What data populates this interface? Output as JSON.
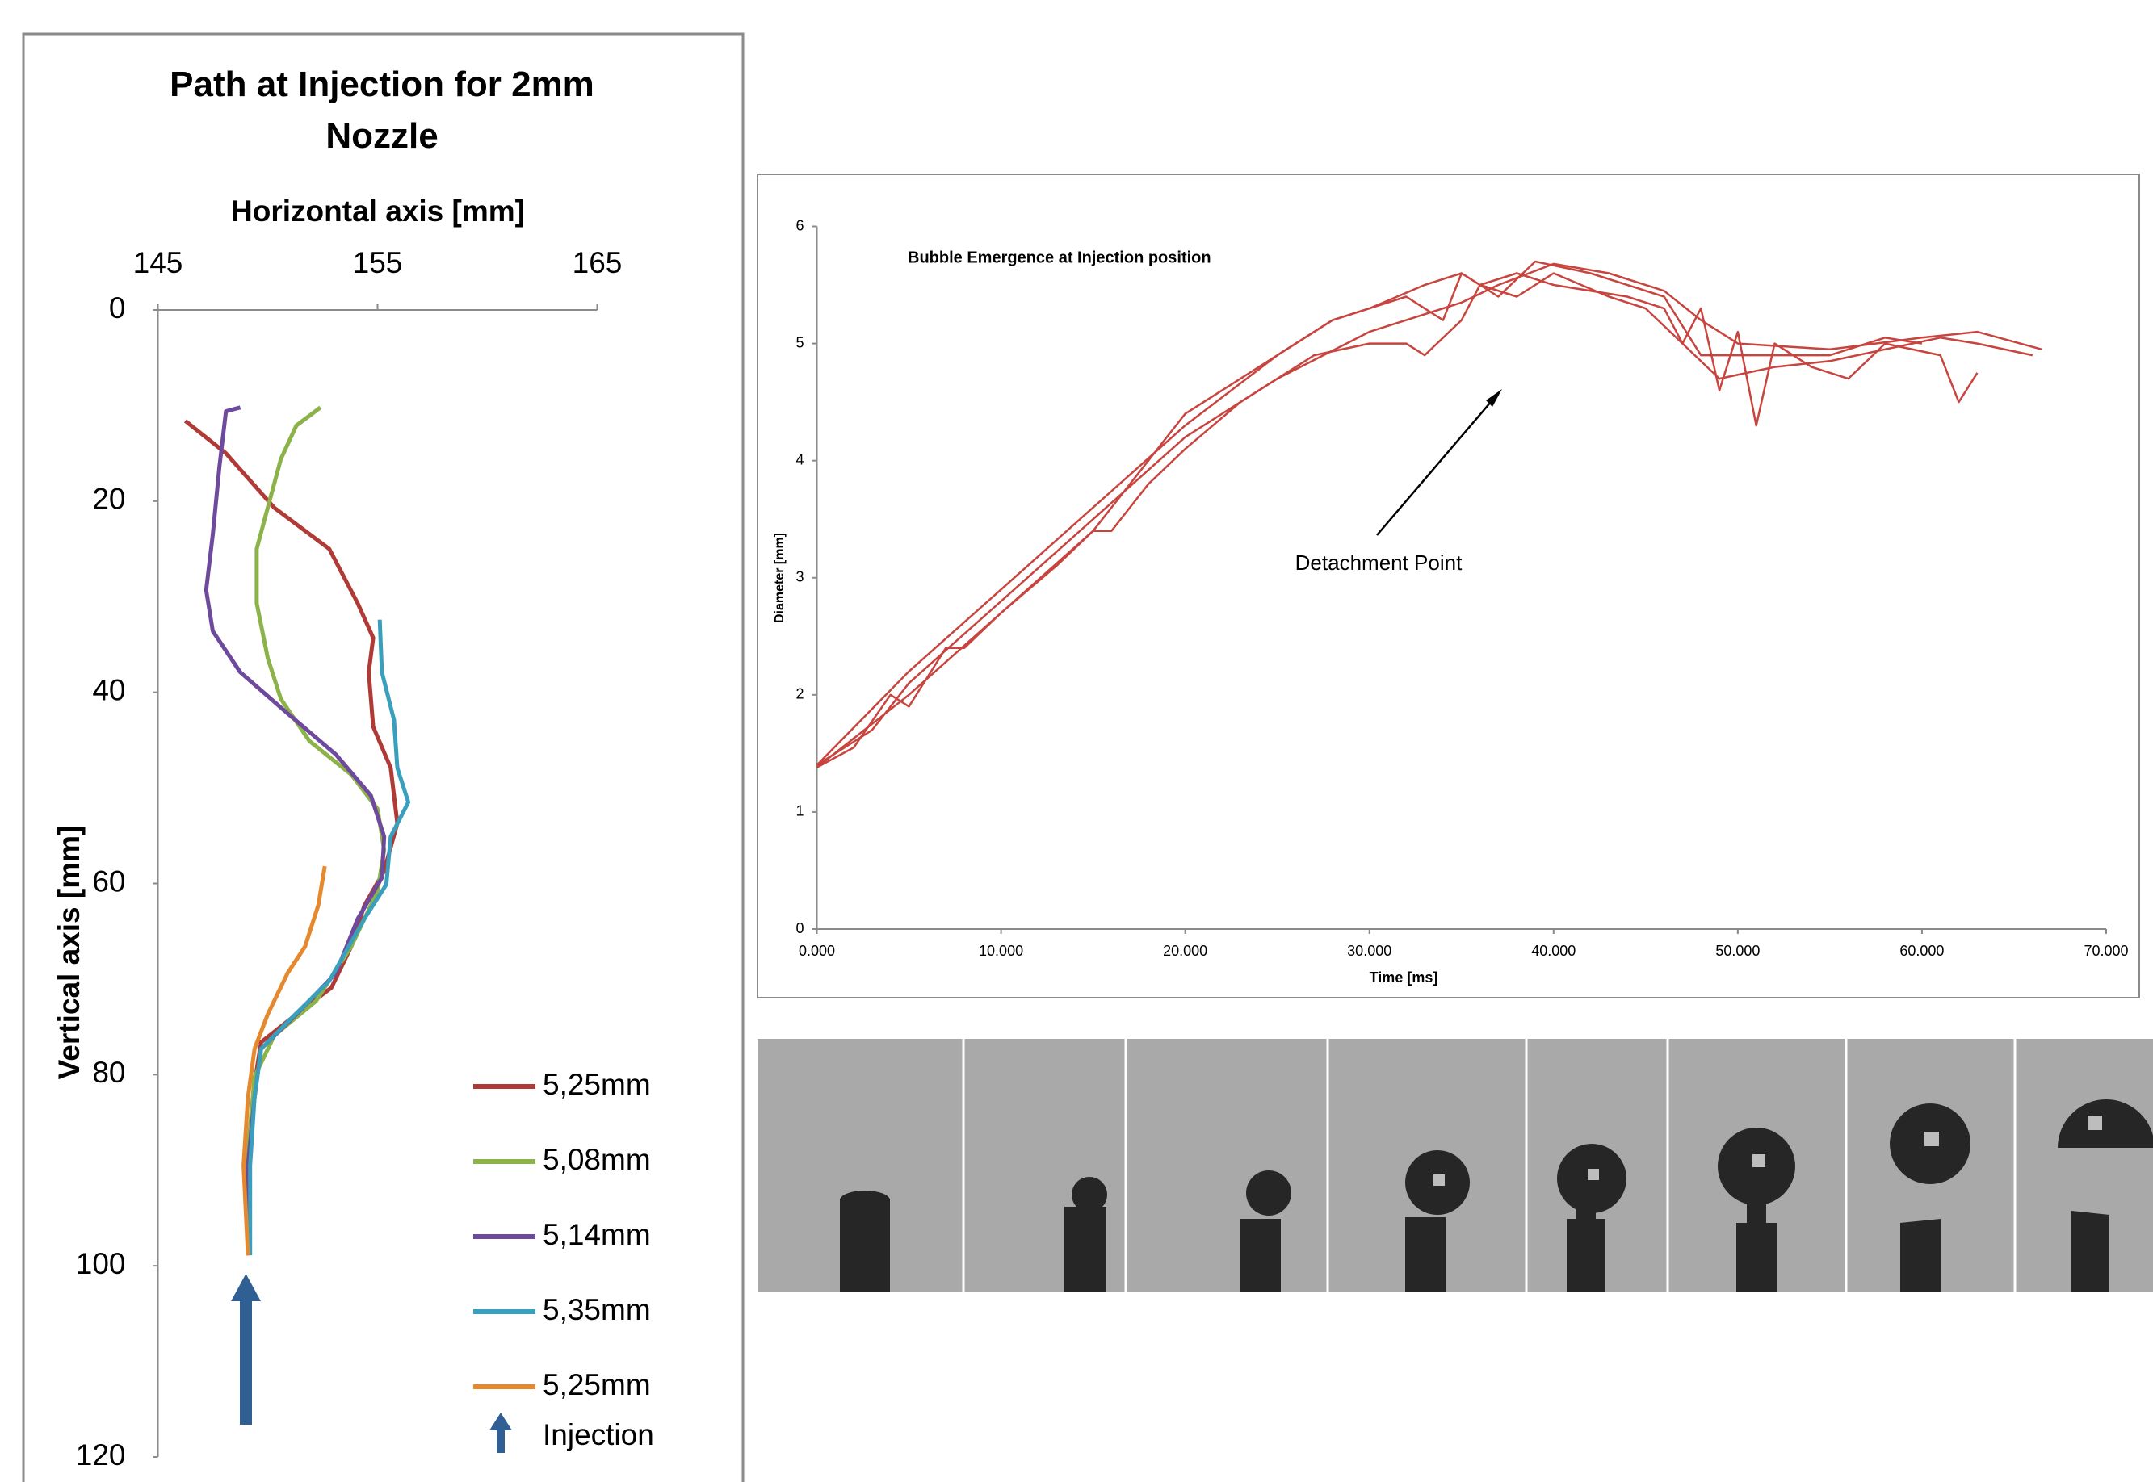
{
  "chart_data": [
    {
      "type": "line",
      "title": "Path at Injection for 2mm Nozzle",
      "x_label": "Horizontal axis [mm]",
      "y_label": "Vertical axis [mm]",
      "xlim": [
        145,
        165
      ],
      "xticks": [
        145,
        155,
        165
      ],
      "ylim": [
        0,
        120
      ],
      "yticks": [
        0,
        20,
        40,
        60,
        80,
        100,
        120
      ],
      "y_inverted": true,
      "injection_label": "Injection",
      "series": [
        {
          "name": "5,25mm",
          "color": "#b03a35",
          "x": [
            146.25,
            148.1,
            150.3,
            152.8,
            154.1,
            154.8,
            154.6,
            154.8,
            155.6,
            155.9,
            155.3,
            154.4,
            153.8,
            152.9,
            151.3,
            149.7,
            149.4,
            149.2,
            149.1,
            149.1
          ],
          "values": [
            11.6,
            15,
            20.7,
            25,
            30.7,
            34.3,
            37.9,
            43.6,
            47.9,
            53.7,
            58.7,
            62.3,
            66.6,
            70.9,
            73.7,
            76.6,
            80.9,
            86.7,
            93.8,
            98.9
          ]
        },
        {
          "name": "5,08mm",
          "color": "#8cb24a",
          "x": [
            152.4,
            151.3,
            150.6,
            150,
            149.5,
            149.5,
            150,
            150.6,
            151.9,
            153.8,
            155,
            155.3,
            155,
            153.8,
            152.2,
            150.3,
            149.4,
            149.1,
            149.1
          ],
          "values": [
            10.2,
            12.1,
            15.6,
            20.7,
            25,
            30.7,
            36.4,
            40.7,
            45.1,
            48.6,
            52.2,
            56.5,
            60.8,
            66.6,
            72.3,
            75.9,
            80.2,
            88.1,
            98.9
          ]
        },
        {
          "name": "5,14mm",
          "color": "#6e4a9c",
          "x": [
            148.75,
            148.1,
            147.8,
            147.5,
            147.2,
            147.5,
            148.75,
            150.9,
            153.1,
            154.7,
            155.3,
            155.2,
            154.1,
            153.1,
            151.3,
            149.7,
            149.4,
            149.1,
            149.1
          ],
          "values": [
            10.2,
            10.6,
            16.4,
            23.5,
            29.3,
            33.6,
            37.9,
            42.2,
            46.5,
            50.8,
            55.1,
            59.4,
            63.7,
            69.4,
            73.7,
            77.3,
            82.4,
            89.5,
            98.9
          ]
        },
        {
          "name": "5,35mm",
          "color": "#3a9fbd",
          "x": [
            155.1,
            155.2,
            155.75,
            155.9,
            156.4,
            155.6,
            155.4,
            154.4,
            152.8,
            150.9,
            149.7,
            149.4,
            149.2,
            149.2
          ],
          "values": [
            32.4,
            37.9,
            42.9,
            47.9,
            51.5,
            55.1,
            60.1,
            63.7,
            70.2,
            74.5,
            77.3,
            82.4,
            89.5,
            98.9
          ]
        },
        {
          "name": "5,25mm",
          "color": "#e5892f",
          "x": [
            152.6,
            152.3,
            151.7,
            150.9,
            150,
            149.4,
            149.1,
            148.9,
            149.1
          ],
          "values": [
            58.2,
            62.3,
            66.6,
            69.4,
            73.7,
            77.3,
            82.4,
            89.5,
            98.9
          ]
        }
      ]
    },
    {
      "type": "line",
      "title": "Bubble Emergence at Injection position",
      "x_label": "Time [ms]",
      "y_label": "Diameter [mm]",
      "annotation": "Detachment Point",
      "xlim": [
        0,
        70
      ],
      "xticks": [
        {
          "value": 0,
          "label": "0.000"
        },
        {
          "value": 10,
          "label": "10.000"
        },
        {
          "value": 20,
          "label": "20.000"
        },
        {
          "value": 30,
          "label": "30.000"
        },
        {
          "value": 40,
          "label": "40.000"
        },
        {
          "value": 50,
          "label": "50.000"
        },
        {
          "value": 60,
          "label": "60.000"
        },
        {
          "value": 70,
          "label": "70.000"
        }
      ],
      "ylim": [
        0,
        6
      ],
      "yticks": [
        0,
        1,
        2,
        3,
        4,
        5,
        6
      ],
      "series": [
        {
          "color": "#c8443f",
          "x": [
            0,
            3,
            5,
            10,
            15,
            20,
            25,
            30,
            35,
            37,
            40,
            43,
            46,
            48,
            50,
            55,
            60,
            63,
            66.5
          ],
          "values": [
            1.4,
            1.7,
            2.1,
            2.8,
            3.5,
            4.2,
            4.7,
            5.1,
            5.35,
            5.5,
            5.68,
            5.6,
            5.45,
            5.2,
            5.0,
            4.95,
            5.05,
            5.1,
            4.95
          ]
        },
        {
          "color": "#c8443f",
          "x": [
            0,
            5,
            10,
            15,
            20,
            25,
            28,
            30,
            33,
            35,
            37,
            39,
            42,
            46,
            48,
            50,
            55,
            58,
            60
          ],
          "values": [
            1.38,
            2.0,
            2.7,
            3.4,
            4.4,
            4.9,
            5.2,
            5.3,
            5.5,
            5.6,
            5.4,
            5.7,
            5.6,
            5.4,
            4.9,
            4.9,
            4.9,
            5.05,
            5.0
          ]
        },
        {
          "color": "#c8443f",
          "x": [
            0,
            2,
            4,
            5,
            7,
            8,
            10,
            13,
            15,
            16,
            18,
            20,
            23,
            25,
            27,
            30,
            32,
            33,
            35,
            36,
            38,
            40,
            43,
            45,
            47,
            48,
            49,
            50,
            51,
            52,
            54,
            56,
            58,
            61,
            62,
            63
          ],
          "values": [
            1.38,
            1.55,
            2.0,
            1.9,
            2.4,
            2.4,
            2.7,
            3.1,
            3.4,
            3.4,
            3.8,
            4.1,
            4.5,
            4.7,
            4.9,
            5.0,
            5.0,
            4.9,
            5.2,
            5.5,
            5.4,
            5.6,
            5.4,
            5.3,
            5.0,
            5.3,
            4.6,
            5.1,
            4.3,
            5.0,
            4.8,
            4.7,
            5.0,
            4.9,
            4.5,
            4.75
          ]
        },
        {
          "color": "#c8443f",
          "x": [
            0,
            5,
            10,
            15,
            20,
            25,
            28,
            30,
            32,
            34,
            35,
            36,
            38,
            40,
            44,
            46,
            47,
            49,
            52,
            55,
            58,
            61,
            63,
            66
          ],
          "values": [
            1.4,
            2.2,
            2.9,
            3.6,
            4.3,
            4.9,
            5.2,
            5.3,
            5.4,
            5.2,
            5.6,
            5.5,
            5.6,
            5.5,
            5.4,
            5.3,
            5.0,
            4.7,
            4.8,
            4.85,
            4.95,
            5.05,
            5.0,
            4.9
          ]
        }
      ]
    }
  ]
}
